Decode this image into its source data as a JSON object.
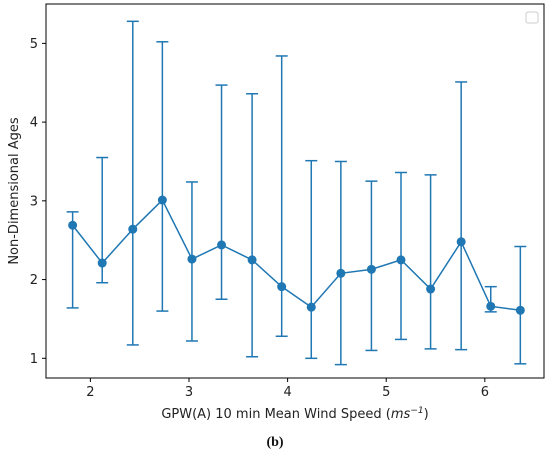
{
  "chart_data": {
    "type": "line",
    "xlabel_prefix": "GPW(A) 10 min Mean Wind Speed (",
    "xlabel_unit_base": "ms",
    "xlabel_unit_exp": "−1",
    "xlabel_suffix": ")",
    "ylabel": "Non-Dimensional Ages",
    "caption": "(b)",
    "xlim": [
      1.55,
      6.6
    ],
    "ylim": [
      0.75,
      5.5
    ],
    "xticks": [
      2,
      3,
      4,
      5,
      6
    ],
    "yticks": [
      1,
      2,
      3,
      4,
      5
    ],
    "grid": false,
    "legend": "top-right (empty)",
    "color": "#1f77b4",
    "series": [
      {
        "x": [
          1.82,
          2.12,
          2.43,
          2.73,
          3.03,
          3.33,
          3.64,
          3.94,
          4.24,
          4.54,
          4.85,
          5.15,
          5.45,
          5.76,
          6.06,
          6.36
        ],
        "y": [
          2.69,
          2.21,
          2.64,
          3.01,
          2.26,
          2.44,
          2.25,
          1.91,
          1.65,
          2.08,
          2.13,
          2.25,
          1.88,
          2.48,
          1.66,
          1.61
        ],
        "lower": [
          1.64,
          1.96,
          1.17,
          1.6,
          1.22,
          1.75,
          1.02,
          1.28,
          1.0,
          0.92,
          1.1,
          1.24,
          1.12,
          1.11,
          1.59,
          0.93
        ],
        "upper": [
          2.86,
          3.55,
          5.28,
          5.02,
          3.24,
          4.47,
          4.36,
          4.84,
          3.51,
          3.5,
          3.25,
          3.36,
          3.33,
          4.51,
          1.91,
          2.42
        ]
      }
    ]
  }
}
